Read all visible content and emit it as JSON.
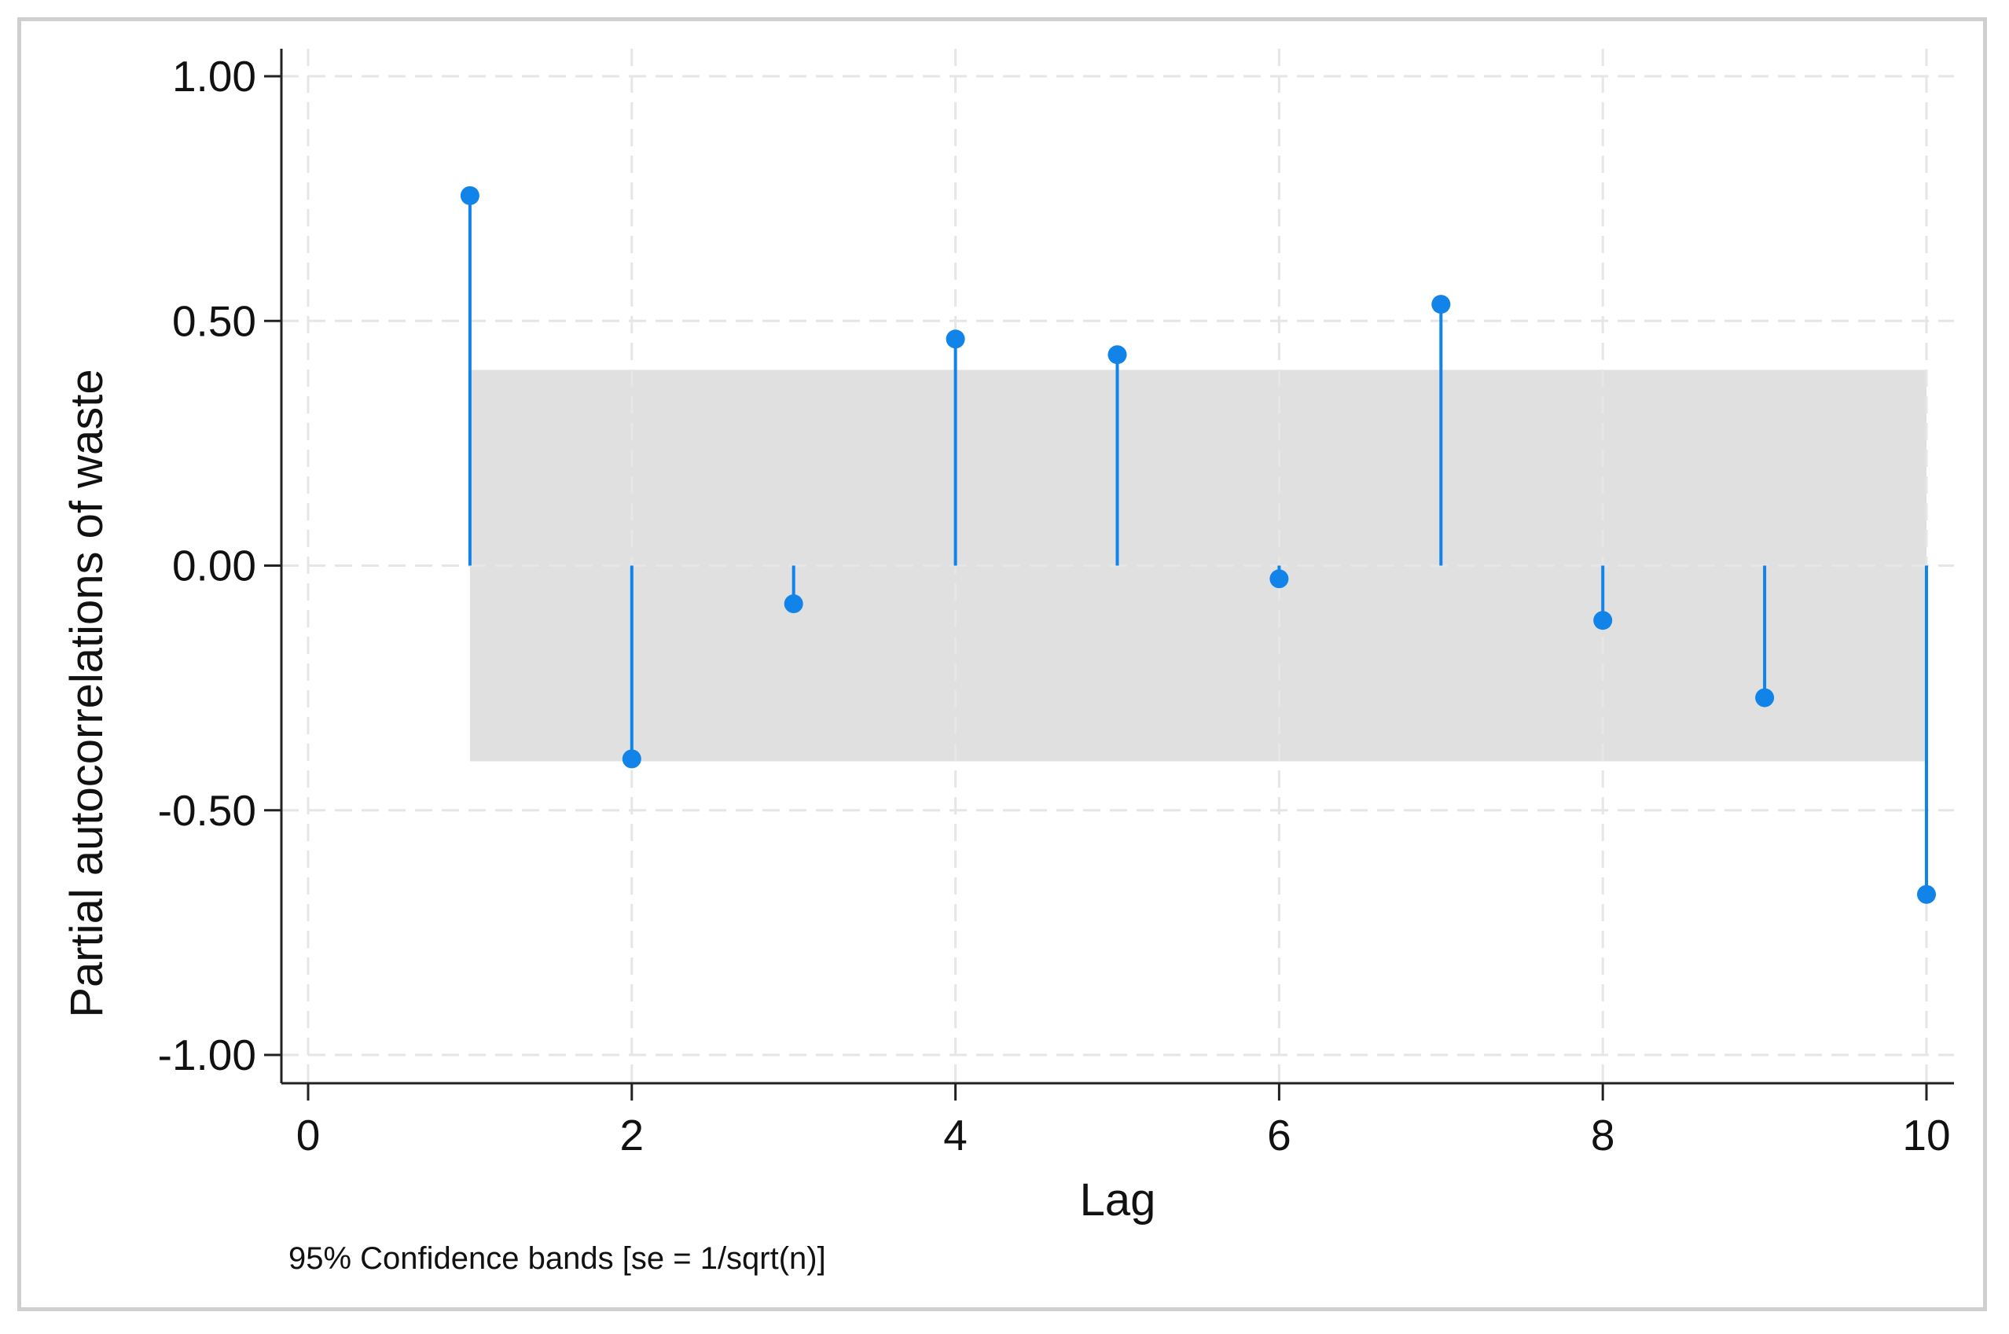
{
  "chart_data": {
    "type": "scatter",
    "subtype": "stem",
    "xlabel": "Lag",
    "ylabel": "Partial autocorrelations of waste",
    "note": "95% Confidence bands [se = 1/sqrt(n)]",
    "xlim": [
      0,
      10
    ],
    "ylim": [
      -1,
      1
    ],
    "x_ticks": [
      0,
      2,
      4,
      6,
      8,
      10
    ],
    "x_tick_labels": [
      "0",
      "2",
      "4",
      "6",
      "8",
      "10"
    ],
    "y_ticks": [
      1,
      0.5,
      0,
      -0.5,
      -1
    ],
    "y_tick_labels": [
      "1.00",
      "0.50",
      "0.00",
      "-0.50",
      "-1.00"
    ],
    "grid": true,
    "series": [
      {
        "x": [
          1,
          2,
          3,
          4,
          5,
          6,
          7,
          8,
          9,
          10
        ],
        "values": [
          0.756,
          -0.395,
          -0.078,
          0.463,
          0.431,
          -0.027,
          0.534,
          -0.112,
          -0.27,
          -0.672
        ]
      }
    ],
    "confidence_band": {
      "lower": -0.4,
      "upper": 0.4,
      "from_lag": 1,
      "to_lag": 10
    },
    "colors": {
      "stem": "#1283e8",
      "band": "#e0e0e0",
      "grid": "#e6e6e6",
      "axis": "#222222"
    }
  }
}
